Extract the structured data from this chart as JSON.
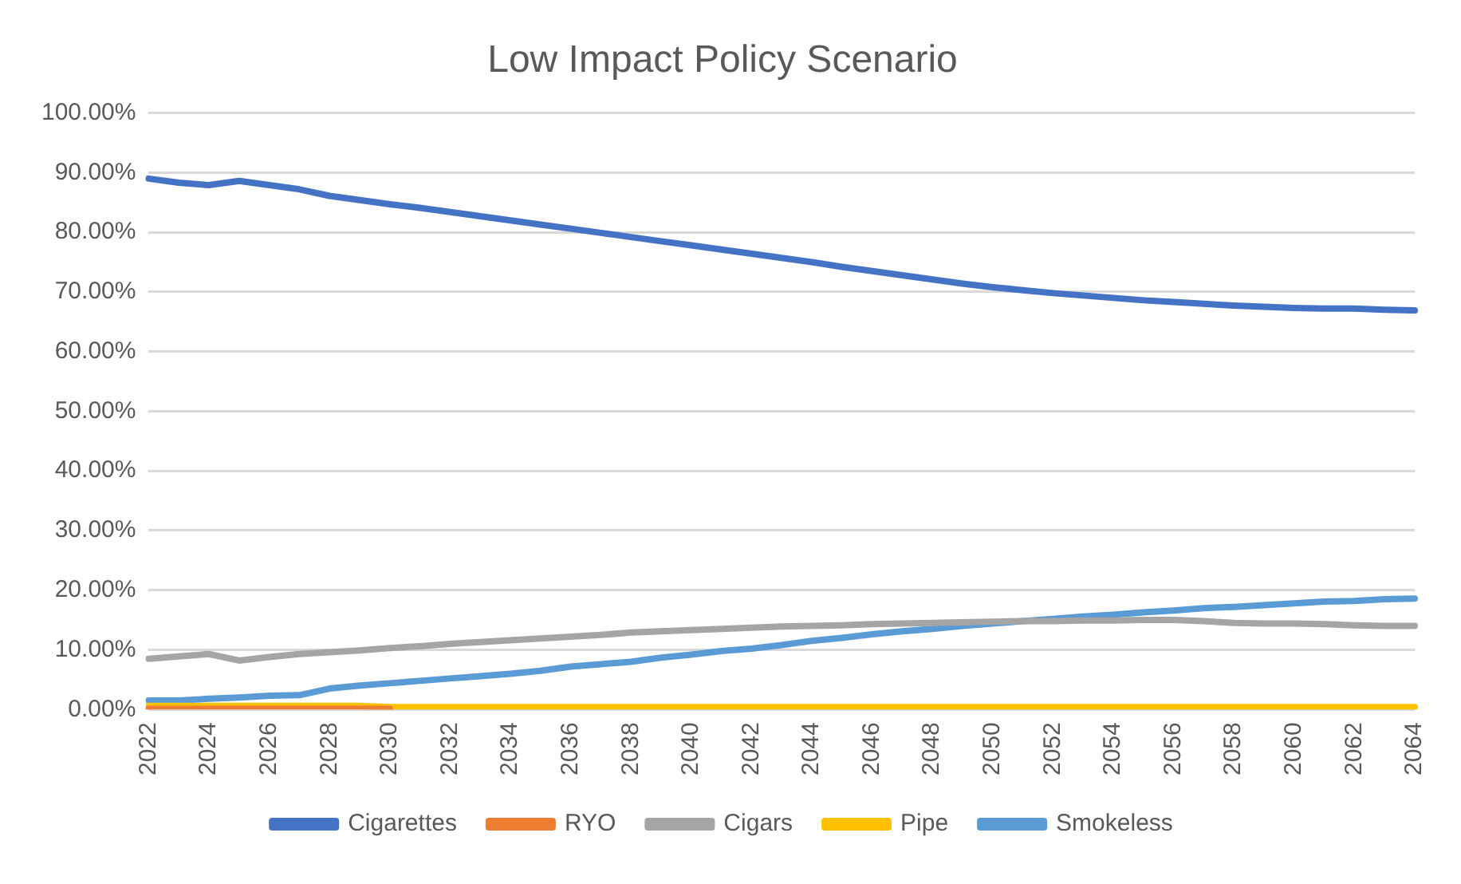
{
  "chart_data": {
    "type": "line",
    "title": "Low Impact Policy Scenario",
    "categories": [
      "2022",
      null,
      "2024",
      null,
      "2026",
      null,
      "2028",
      null,
      "2030",
      null,
      "2032",
      null,
      "2034",
      null,
      "2036",
      null,
      "2038",
      null,
      "2040",
      null,
      "2042",
      null,
      "2044",
      null,
      "2046",
      null,
      "2048",
      null,
      "2050",
      null,
      "2052",
      null,
      "2054",
      null,
      "2056",
      null,
      "2058",
      null,
      "2060",
      null,
      "2062",
      null,
      "2064"
    ],
    "series": [
      {
        "name": "Cigarettes",
        "color": "#4472c4",
        "values": [
          89.0,
          88.3,
          87.9,
          88.6,
          87.9,
          87.2,
          86.1,
          85.4,
          84.7,
          84.1,
          83.4,
          82.7,
          82.0,
          81.3,
          80.6,
          79.9,
          79.2,
          78.5,
          77.8,
          77.1,
          76.4,
          75.7,
          75.0,
          74.2,
          73.5,
          72.8,
          72.1,
          71.4,
          70.8,
          70.3,
          69.8,
          69.4,
          69.0,
          68.6,
          68.3,
          68.0,
          67.7,
          67.5,
          67.3,
          67.2,
          67.2,
          67.0,
          66.9
        ]
      },
      {
        "name": "RYO",
        "color": "#ed7d31",
        "values": [
          0.1,
          0.1,
          0.1,
          0.1,
          0.1,
          0.1,
          0.1,
          0.1,
          0.1,
          null,
          null,
          null,
          null,
          null,
          null,
          null,
          null,
          null,
          null,
          null,
          null,
          null,
          null,
          null,
          null,
          null,
          null,
          null,
          null,
          null,
          null,
          null,
          null,
          null,
          null,
          null,
          null,
          null,
          null,
          null,
          null,
          null,
          null
        ]
      },
      {
        "name": "Cigars",
        "color": "#a5a5a5",
        "values": [
          8.5,
          8.9,
          9.3,
          8.2,
          8.8,
          9.3,
          9.6,
          9.9,
          10.3,
          10.6,
          11.0,
          11.3,
          11.6,
          11.9,
          12.2,
          12.5,
          12.9,
          13.1,
          13.3,
          13.5,
          13.7,
          13.9,
          14.0,
          14.1,
          14.3,
          14.4,
          14.5,
          14.6,
          14.7,
          14.8,
          14.8,
          14.9,
          14.9,
          15.0,
          15.0,
          14.8,
          14.5,
          14.4,
          14.4,
          14.3,
          14.1,
          14.0,
          14.0
        ]
      },
      {
        "name": "Pipe",
        "color": "#ffc000",
        "values": [
          0.6,
          0.6,
          0.6,
          0.6,
          0.6,
          0.6,
          0.6,
          0.6,
          0.4,
          0.4,
          0.4,
          0.4,
          0.4,
          0.4,
          0.4,
          0.4,
          0.4,
          0.4,
          0.4,
          0.4,
          0.4,
          0.4,
          0.4,
          0.4,
          0.4,
          0.4,
          0.4,
          0.4,
          0.4,
          0.4,
          0.4,
          0.4,
          0.4,
          0.4,
          0.4,
          0.4,
          0.4,
          0.4,
          0.4,
          0.4,
          0.4,
          0.4,
          0.4
        ]
      },
      {
        "name": "Smokeless",
        "color": "#5b9bd5",
        "values": [
          1.5,
          1.5,
          1.8,
          2.0,
          2.3,
          2.4,
          3.5,
          4.0,
          4.4,
          4.8,
          5.2,
          5.6,
          6.0,
          6.5,
          7.2,
          7.6,
          8.0,
          8.7,
          9.2,
          9.8,
          10.2,
          10.8,
          11.5,
          12.0,
          12.6,
          13.1,
          13.5,
          14.0,
          14.4,
          14.8,
          15.2,
          15.6,
          15.9,
          16.3,
          16.6,
          17.0,
          17.2,
          17.5,
          17.8,
          18.1,
          18.2,
          18.5,
          18.6
        ]
      }
    ],
    "ylim": [
      0,
      100
    ],
    "yticks": [
      {
        "value": 0,
        "label": "0.00%"
      },
      {
        "value": 10,
        "label": "10.00%"
      },
      {
        "value": 20,
        "label": "20.00%"
      },
      {
        "value": 30,
        "label": "30.00%"
      },
      {
        "value": 40,
        "label": "40.00%"
      },
      {
        "value": 50,
        "label": "50.00%"
      },
      {
        "value": 60,
        "label": "60.00%"
      },
      {
        "value": 70,
        "label": "70.00%"
      },
      {
        "value": 80,
        "label": "80.00%"
      },
      {
        "value": 90,
        "label": "90.00%"
      },
      {
        "value": 100,
        "label": "100.00%"
      }
    ],
    "grid": "y",
    "legend": "bottom",
    "marker": "none",
    "line_style": "solid"
  }
}
